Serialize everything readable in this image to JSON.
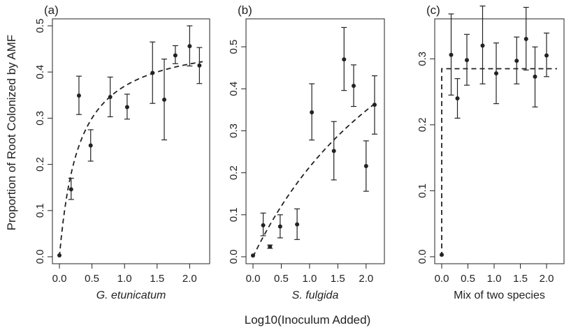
{
  "figure": {
    "ylabel": "Proportion of Root Colonized by AMF",
    "xlabel": "Log10(Inoculum Added)"
  },
  "chart_data": [
    {
      "type": "scatter",
      "panel_label": "(a)",
      "xlabel": "G. etunicatum",
      "xlabel_italic": true,
      "xlim": [
        0,
        2.2
      ],
      "ylim": [
        0,
        0.5
      ],
      "xticks": [
        "0.0",
        "0.5",
        "1.0",
        "1.5",
        "2.0"
      ],
      "yticks": [
        "0.0",
        "0.1",
        "0.2",
        "0.3",
        "0.4",
        "0.5"
      ],
      "points": [
        {
          "x": 0.0,
          "y": 0.003,
          "lo": 0.003,
          "hi": 0.003
        },
        {
          "x": 0.18,
          "y": 0.146,
          "lo": 0.124,
          "hi": 0.17
        },
        {
          "x": 0.3,
          "y": 0.349,
          "lo": 0.308,
          "hi": 0.391
        },
        {
          "x": 0.48,
          "y": 0.241,
          "lo": 0.207,
          "hi": 0.275
        },
        {
          "x": 0.78,
          "y": 0.346,
          "lo": 0.303,
          "hi": 0.389
        },
        {
          "x": 1.04,
          "y": 0.324,
          "lo": 0.298,
          "hi": 0.352
        },
        {
          "x": 1.43,
          "y": 0.398,
          "lo": 0.332,
          "hi": 0.465
        },
        {
          "x": 1.61,
          "y": 0.34,
          "lo": 0.253,
          "hi": 0.428
        },
        {
          "x": 1.78,
          "y": 0.436,
          "lo": 0.418,
          "hi": 0.457
        },
        {
          "x": 2.0,
          "y": 0.456,
          "lo": 0.413,
          "hi": 0.5
        },
        {
          "x": 2.15,
          "y": 0.414,
          "lo": 0.375,
          "hi": 0.453
        }
      ],
      "fit": {
        "style": "dashed",
        "model": "asymptotic",
        "asymptote": 0.48,
        "half_x": 0.3
      }
    },
    {
      "type": "scatter",
      "panel_label": "(b)",
      "xlabel": "S. fulgida",
      "xlabel_italic": true,
      "xlim": [
        0,
        2.2
      ],
      "ylim": [
        0,
        0.55
      ],
      "xticks": [
        "0.0",
        "0.5",
        "1.0",
        "1.5",
        "2.0"
      ],
      "yticks": [
        "0.0",
        "0.1",
        "0.2",
        "0.3",
        "0.4",
        "0.5"
      ],
      "points": [
        {
          "x": 0.0,
          "y": 0.003,
          "lo": 0.003,
          "hi": 0.003
        },
        {
          "x": 0.18,
          "y": 0.075,
          "lo": 0.05,
          "hi": 0.104
        },
        {
          "x": 0.3,
          "y": 0.024,
          "lo": 0.02,
          "hi": 0.028
        },
        {
          "x": 0.48,
          "y": 0.072,
          "lo": 0.045,
          "hi": 0.1
        },
        {
          "x": 0.78,
          "y": 0.077,
          "lo": 0.041,
          "hi": 0.114
        },
        {
          "x": 1.04,
          "y": 0.344,
          "lo": 0.278,
          "hi": 0.412
        },
        {
          "x": 1.43,
          "y": 0.252,
          "lo": 0.183,
          "hi": 0.322
        },
        {
          "x": 1.61,
          "y": 0.47,
          "lo": 0.396,
          "hi": 0.546
        },
        {
          "x": 1.78,
          "y": 0.407,
          "lo": 0.358,
          "hi": 0.457
        },
        {
          "x": 2.0,
          "y": 0.216,
          "lo": 0.156,
          "hi": 0.276
        },
        {
          "x": 2.15,
          "y": 0.362,
          "lo": 0.292,
          "hi": 0.431
        }
      ],
      "fit": {
        "style": "dashed",
        "model": "asymptotic",
        "asymptote": 0.94,
        "half_x": 3.4
      }
    },
    {
      "type": "scatter",
      "panel_label": "(c)",
      "xlabel": "Mix of two species",
      "xlabel_italic": false,
      "xlim": [
        0,
        2.2
      ],
      "ylim": [
        0,
        0.35
      ],
      "xticks": [
        "0.0",
        "0.5",
        "1.0",
        "1.5",
        "2.0"
      ],
      "yticks": [
        "0.0",
        "0.1",
        "0.2",
        "0.3"
      ],
      "points": [
        {
          "x": 0.0,
          "y": 0.003,
          "lo": 0.003,
          "hi": 0.003
        },
        {
          "x": 0.18,
          "y": 0.306,
          "lo": 0.245,
          "hi": 0.368
        },
        {
          "x": 0.3,
          "y": 0.24,
          "lo": 0.21,
          "hi": 0.27
        },
        {
          "x": 0.48,
          "y": 0.298,
          "lo": 0.26,
          "hi": 0.337
        },
        {
          "x": 0.78,
          "y": 0.32,
          "lo": 0.262,
          "hi": 0.38
        },
        {
          "x": 1.04,
          "y": 0.278,
          "lo": 0.232,
          "hi": 0.324
        },
        {
          "x": 1.43,
          "y": 0.297,
          "lo": 0.262,
          "hi": 0.333
        },
        {
          "x": 1.61,
          "y": 0.33,
          "lo": 0.283,
          "hi": 0.378
        },
        {
          "x": 1.78,
          "y": 0.273,
          "lo": 0.227,
          "hi": 0.318
        },
        {
          "x": 2.0,
          "y": 0.305,
          "lo": 0.273,
          "hi": 0.339
        }
      ],
      "fit": {
        "style": "dashed",
        "model": "step",
        "level": 0.285
      }
    }
  ]
}
